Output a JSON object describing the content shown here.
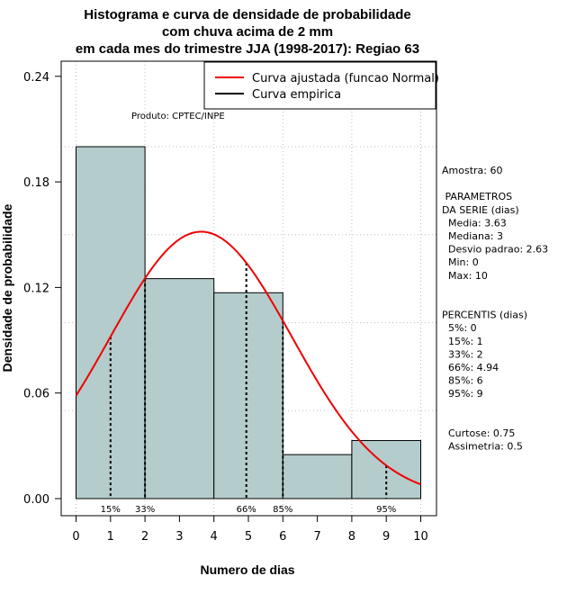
{
  "chart_data": {
    "type": "histogram",
    "title_lines": [
      "Histograma e curva de densidade de probabilidade",
      "com chuva acima de 2 mm",
      "em cada mes do trimestre JJA (1998-2017): Regiao 63"
    ],
    "xlabel": "Numero de dias",
    "ylabel": "Densidade de probabilidade",
    "xlim": [
      0,
      10
    ],
    "ylim": [
      0,
      0.24
    ],
    "x_ticks": [
      0,
      1,
      2,
      3,
      4,
      5,
      6,
      7,
      8,
      9,
      10
    ],
    "y_ticks": [
      0.0,
      0.06,
      0.12,
      0.18,
      0.24
    ],
    "y_tick_labels": [
      "0.00",
      "0.06",
      "0.12",
      "0.18",
      "0.24"
    ],
    "bins": [
      {
        "start": 0,
        "end": 2,
        "density": 0.2
      },
      {
        "start": 2,
        "end": 4,
        "density": 0.125
      },
      {
        "start": 4,
        "end": 6,
        "density": 0.117
      },
      {
        "start": 6,
        "end": 8,
        "density": 0.025
      },
      {
        "start": 8,
        "end": 10,
        "density": 0.033
      }
    ],
    "normal_fit": {
      "mean": 3.63,
      "sd": 2.63
    },
    "percentile_markers": [
      {
        "label": "15%",
        "x": 1
      },
      {
        "label": "33%",
        "x": 2
      },
      {
        "label": "66%",
        "x": 4.94
      },
      {
        "label": "85%",
        "x": 6
      },
      {
        "label": "95%",
        "x": 9
      }
    ],
    "product_label": "Produto: CPTEC/INPE",
    "legend": {
      "position": "top-right",
      "entries": [
        {
          "label": "Curva ajustada (funcao Normal)",
          "color": "#ee0000"
        },
        {
          "label": "Curva empirica",
          "color": "#000000"
        }
      ]
    },
    "side_panel": [
      "Amostra: 60",
      "",
      " PARAMETROS",
      "DA SERIE (dias)",
      "  Media: 3.63",
      "  Mediana: 3",
      "  Desvio padrao: 2.63",
      "  Min: 0",
      "  Max: 10",
      "",
      "",
      "PERCENTIS (dias)",
      "  5%: 0",
      "  15%: 1",
      "  33%: 2",
      "  66%: 4.94",
      "  85%: 6",
      "  95%: 9",
      "",
      "",
      "  Curtose: 0.75",
      "  Assimetria: 0.5"
    ],
    "colors": {
      "bar_fill": "#b4cccc",
      "curve": "#ee0000",
      "grid": "#bebebe"
    }
  }
}
